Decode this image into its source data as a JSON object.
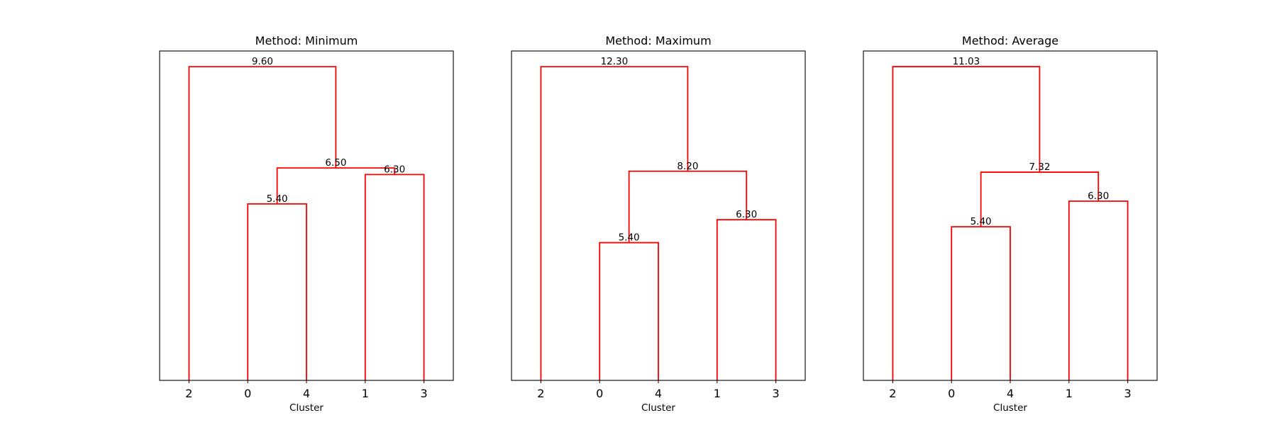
{
  "figure": {
    "link_color": "#ff0000",
    "background": "#ffffff"
  },
  "chart_data": [
    {
      "type": "dendrogram",
      "title": "Method: Minimum",
      "xlabel": "Cluster",
      "ylabel": "",
      "leaf_order": [
        "2",
        "0",
        "4",
        "1",
        "3"
      ],
      "ylim": [
        0,
        10.08
      ],
      "y_ticks_visible": false,
      "grid": false,
      "merges": [
        {
          "left": "0",
          "right": "4",
          "height": 5.4,
          "label": "5.40"
        },
        {
          "left": "1",
          "right": "3",
          "height": 6.3,
          "label": "6.30"
        },
        {
          "left": "(0,4)",
          "right": "(1,3)",
          "height": 6.5,
          "label": "6.50"
        },
        {
          "left": "2",
          "right": "((0,4),(1,3))",
          "height": 9.6,
          "label": "9.60"
        }
      ]
    },
    {
      "type": "dendrogram",
      "title": "Method: Maximum",
      "xlabel": "Cluster",
      "ylabel": "",
      "leaf_order": [
        "2",
        "0",
        "4",
        "1",
        "3"
      ],
      "ylim": [
        0,
        12.915
      ],
      "y_ticks_visible": false,
      "grid": false,
      "merges": [
        {
          "left": "0",
          "right": "4",
          "height": 5.4,
          "label": "5.40"
        },
        {
          "left": "1",
          "right": "3",
          "height": 6.3,
          "label": "6.30"
        },
        {
          "left": "(0,4)",
          "right": "(1,3)",
          "height": 8.2,
          "label": "8.20"
        },
        {
          "left": "2",
          "right": "((0,4),(1,3))",
          "height": 12.3,
          "label": "12.30"
        }
      ]
    },
    {
      "type": "dendrogram",
      "title": "Method: Average",
      "xlabel": "Cluster",
      "ylabel": "",
      "leaf_order": [
        "2",
        "0",
        "4",
        "1",
        "3"
      ],
      "ylim": [
        0,
        11.58
      ],
      "y_ticks_visible": false,
      "grid": false,
      "merges": [
        {
          "left": "0",
          "right": "4",
          "height": 5.4,
          "label": "5.40"
        },
        {
          "left": "1",
          "right": "3",
          "height": 6.3,
          "label": "6.30"
        },
        {
          "left": "(0,4)",
          "right": "(1,3)",
          "height": 7.32,
          "label": "7.32"
        },
        {
          "left": "2",
          "right": "((0,4),(1,3))",
          "height": 11.03,
          "label": "11.03"
        }
      ]
    }
  ]
}
